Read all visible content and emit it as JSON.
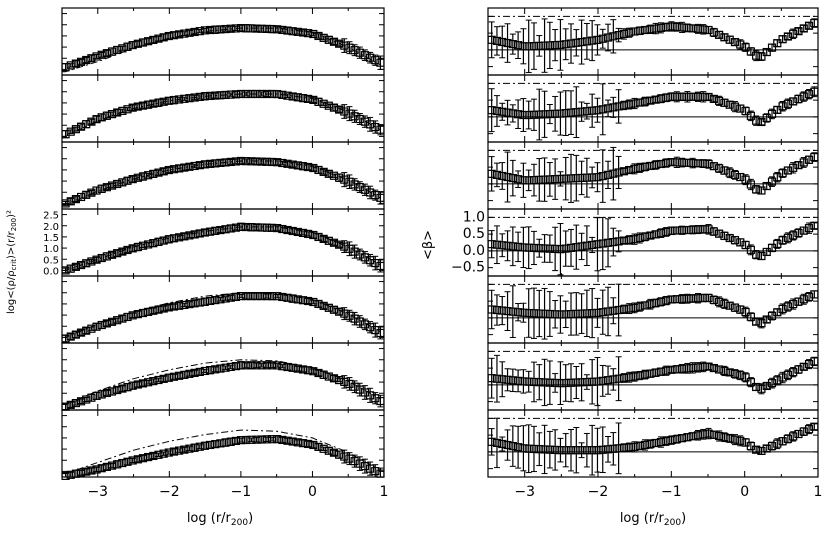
{
  "chart_data": [
    {
      "type": "scatter",
      "panel": "left",
      "xlabel": "log (r/r",
      "xlabel_sub": "200",
      "xlabel_close": ")",
      "ylabel": "log<(ρ/ρ",
      "ylabel_sub": "crit",
      "ylabel_mid": ")>(r/r",
      "ylabel_sub2": "200",
      "ylabel_end": ")²",
      "xlim": [
        -3.5,
        1
      ],
      "ylim": [
        -0.25,
        2.75
      ],
      "xticks": [
        -3,
        -2,
        -1,
        0,
        1
      ],
      "yticks": [
        0.0,
        0.5,
        1.0,
        1.5,
        2.0,
        2.5
      ],
      "ytick_labels": [
        "0.0",
        "0.5",
        "1.0",
        "1.5",
        "2.0",
        "2.5"
      ],
      "ytick_panel": 3,
      "n_panels": 7,
      "markers": "open squares with error bars",
      "series": [
        {
          "points": [
            [
              -3.45,
              0.1
            ],
            [
              -3.0,
              0.6
            ],
            [
              -2.5,
              1.1
            ],
            [
              -2.0,
              1.5
            ],
            [
              -1.5,
              1.75
            ],
            [
              -1.0,
              1.85
            ],
            [
              -0.5,
              1.8
            ],
            [
              0.0,
              1.6
            ],
            [
              0.5,
              1.0
            ],
            [
              0.95,
              0.3
            ]
          ],
          "err": 0.12,
          "ref": [
            [
              -3.45,
              -0.1
            ],
            [
              -3.0,
              0.35
            ],
            [
              -2.5,
              0.95
            ],
            [
              -2.0,
              1.4
            ],
            [
              -1.5,
              1.7
            ],
            [
              -1.0,
              1.85
            ],
            [
              -0.5,
              1.85
            ],
            [
              0.0,
              1.65
            ],
            [
              0.5,
              1.0
            ],
            [
              0.95,
              0.2
            ]
          ]
        },
        {
          "points": [
            [
              -3.45,
              0.1
            ],
            [
              -3.0,
              0.8
            ],
            [
              -2.5,
              1.3
            ],
            [
              -2.0,
              1.6
            ],
            [
              -1.5,
              1.8
            ],
            [
              -1.0,
              1.9
            ],
            [
              -0.5,
              1.9
            ],
            [
              0.0,
              1.65
            ],
            [
              0.5,
              1.05
            ],
            [
              0.95,
              0.3
            ]
          ],
          "err": 0.12,
          "ref": [
            [
              -3.45,
              0.0
            ],
            [
              -3.0,
              0.7
            ],
            [
              -2.5,
              1.25
            ],
            [
              -2.0,
              1.6
            ],
            [
              -1.5,
              1.8
            ],
            [
              -1.0,
              1.9
            ],
            [
              -0.5,
              1.9
            ],
            [
              0.0,
              1.7
            ],
            [
              0.5,
              1.1
            ],
            [
              0.95,
              0.3
            ]
          ]
        },
        {
          "points": [
            [
              -3.45,
              0.0
            ],
            [
              -3.0,
              0.6
            ],
            [
              -2.5,
              1.1
            ],
            [
              -2.0,
              1.5
            ],
            [
              -1.5,
              1.75
            ],
            [
              -1.0,
              1.9
            ],
            [
              -0.5,
              1.85
            ],
            [
              0.0,
              1.6
            ],
            [
              0.5,
              1.0
            ],
            [
              0.95,
              0.25
            ]
          ],
          "err": 0.12,
          "ref": [
            [
              -3.45,
              -0.05
            ],
            [
              -3.0,
              0.55
            ],
            [
              -2.5,
              1.1
            ],
            [
              -2.0,
              1.5
            ],
            [
              -1.5,
              1.75
            ],
            [
              -1.0,
              1.9
            ],
            [
              -0.5,
              1.9
            ],
            [
              0.0,
              1.65
            ],
            [
              0.5,
              1.05
            ],
            [
              0.95,
              0.25
            ]
          ]
        },
        {
          "points": [
            [
              -3.45,
              0.0
            ],
            [
              -3.0,
              0.5
            ],
            [
              -2.5,
              1.0
            ],
            [
              -2.0,
              1.4
            ],
            [
              -1.5,
              1.7
            ],
            [
              -1.0,
              1.95
            ],
            [
              -0.5,
              1.9
            ],
            [
              0.0,
              1.6
            ],
            [
              0.5,
              1.0
            ],
            [
              0.95,
              0.2
            ]
          ],
          "err": 0.12,
          "ref": [
            [
              -3.45,
              0.0
            ],
            [
              -3.0,
              0.5
            ],
            [
              -2.5,
              1.05
            ],
            [
              -2.0,
              1.45
            ],
            [
              -1.5,
              1.75
            ],
            [
              -1.0,
              1.95
            ],
            [
              -0.5,
              1.95
            ],
            [
              0.0,
              1.7
            ],
            [
              0.5,
              1.05
            ],
            [
              0.95,
              0.25
            ]
          ]
        },
        {
          "points": [
            [
              -3.45,
              -0.05
            ],
            [
              -3.0,
              0.5
            ],
            [
              -2.5,
              1.0
            ],
            [
              -2.0,
              1.35
            ],
            [
              -1.5,
              1.6
            ],
            [
              -1.0,
              1.85
            ],
            [
              -0.5,
              1.85
            ],
            [
              0.0,
              1.6
            ],
            [
              0.5,
              1.0
            ],
            [
              0.95,
              0.2
            ]
          ],
          "err": 0.12,
          "ref": [
            [
              -3.45,
              0.0
            ],
            [
              -3.0,
              0.6
            ],
            [
              -2.5,
              1.15
            ],
            [
              -2.0,
              1.55
            ],
            [
              -1.5,
              1.85
            ],
            [
              -1.0,
              2.0
            ],
            [
              -0.5,
              1.95
            ],
            [
              0.0,
              1.7
            ],
            [
              0.5,
              1.05
            ],
            [
              0.95,
              0.25
            ]
          ]
        },
        {
          "points": [
            [
              -3.45,
              -0.1
            ],
            [
              -3.0,
              0.4
            ],
            [
              -2.5,
              0.85
            ],
            [
              -2.0,
              1.2
            ],
            [
              -1.5,
              1.5
            ],
            [
              -1.0,
              1.75
            ],
            [
              -0.5,
              1.75
            ],
            [
              0.0,
              1.5
            ],
            [
              0.5,
              0.95
            ],
            [
              0.95,
              0.15
            ]
          ],
          "err": 0.12,
          "ref": [
            [
              -3.45,
              0.0
            ],
            [
              -3.0,
              0.6
            ],
            [
              -2.5,
              1.15
            ],
            [
              -2.0,
              1.55
            ],
            [
              -1.5,
              1.85
            ],
            [
              -1.0,
              2.0
            ],
            [
              -0.5,
              1.95
            ],
            [
              0.0,
              1.65
            ],
            [
              0.5,
              1.05
            ],
            [
              0.95,
              0.25
            ]
          ]
        },
        {
          "points": [
            [
              -3.45,
              -0.2
            ],
            [
              -3.0,
              0.1
            ],
            [
              -2.5,
              0.5
            ],
            [
              -2.0,
              0.85
            ],
            [
              -1.5,
              1.15
            ],
            [
              -1.0,
              1.4
            ],
            [
              -0.5,
              1.45
            ],
            [
              0.0,
              1.2
            ],
            [
              0.5,
              0.6
            ],
            [
              0.95,
              -0.1
            ]
          ],
          "err": 0.12,
          "ref": [
            [
              -3.45,
              -0.1
            ],
            [
              -3.0,
              0.4
            ],
            [
              -2.5,
              0.95
            ],
            [
              -2.0,
              1.35
            ],
            [
              -1.5,
              1.65
            ],
            [
              -1.0,
              1.85
            ],
            [
              -0.5,
              1.8
            ],
            [
              0.0,
              1.5
            ],
            [
              0.5,
              0.85
            ],
            [
              0.95,
              0.05
            ]
          ]
        }
      ]
    },
    {
      "type": "scatter",
      "panel": "right",
      "xlabel": "log (r/r",
      "xlabel_sub": "200",
      "xlabel_close": ")",
      "ylabel": "<β>",
      "xlim": [
        -3.5,
        1
      ],
      "ylim": [
        -0.75,
        1.25
      ],
      "xticks": [
        -3,
        -2,
        -1,
        0,
        1
      ],
      "yticks": [
        -0.5,
        0.0,
        0.5,
        1.0
      ],
      "ytick_labels": [
        "−0.5",
        "0.0",
        "0.5",
        "1.0"
      ],
      "ytick_panel": 3,
      "n_panels": 7,
      "reference_lines": {
        "solid": 0.0,
        "dashdot": 1.0
      },
      "markers": "open squares with error bars",
      "series": [
        {
          "points": [
            [
              -3.45,
              0.3
            ],
            [
              -3.0,
              0.1
            ],
            [
              -2.5,
              0.15
            ],
            [
              -2.0,
              0.3
            ],
            [
              -1.5,
              0.55
            ],
            [
              -1.0,
              0.7
            ],
            [
              -0.5,
              0.6
            ],
            [
              0.0,
              0.1
            ],
            [
              0.2,
              -0.25
            ],
            [
              0.5,
              0.3
            ],
            [
              0.95,
              0.8
            ]
          ],
          "err_core": 0.5,
          "err_outer": 0.12
        },
        {
          "points": [
            [
              -3.45,
              0.2
            ],
            [
              -3.0,
              0.05
            ],
            [
              -2.5,
              0.1
            ],
            [
              -2.0,
              0.2
            ],
            [
              -1.5,
              0.4
            ],
            [
              -1.0,
              0.6
            ],
            [
              -0.5,
              0.6
            ],
            [
              0.0,
              0.2
            ],
            [
              0.2,
              -0.2
            ],
            [
              0.5,
              0.3
            ],
            [
              0.95,
              0.75
            ]
          ],
          "err_core": 0.5,
          "err_outer": 0.12
        },
        {
          "points": [
            [
              -3.45,
              0.3
            ],
            [
              -3.0,
              0.1
            ],
            [
              -2.5,
              0.15
            ],
            [
              -2.0,
              0.2
            ],
            [
              -1.5,
              0.45
            ],
            [
              -1.0,
              0.65
            ],
            [
              -0.5,
              0.6
            ],
            [
              0.0,
              0.15
            ],
            [
              0.2,
              -0.25
            ],
            [
              0.5,
              0.3
            ],
            [
              0.95,
              0.8
            ]
          ],
          "err_core": 0.5,
          "err_outer": 0.12
        },
        {
          "points": [
            [
              -3.45,
              0.2
            ],
            [
              -3.0,
              0.1
            ],
            [
              -2.5,
              0.05
            ],
            [
              -2.0,
              0.2
            ],
            [
              -1.5,
              0.35
            ],
            [
              -1.0,
              0.6
            ],
            [
              -0.5,
              0.65
            ],
            [
              0.0,
              0.2
            ],
            [
              0.2,
              -0.2
            ],
            [
              0.5,
              0.3
            ],
            [
              0.95,
              0.75
            ]
          ],
          "err_core": 0.5,
          "err_outer": 0.12
        },
        {
          "points": [
            [
              -3.45,
              0.25
            ],
            [
              -3.0,
              0.15
            ],
            [
              -2.5,
              0.1
            ],
            [
              -2.0,
              0.15
            ],
            [
              -1.5,
              0.3
            ],
            [
              -1.0,
              0.55
            ],
            [
              -0.5,
              0.6
            ],
            [
              0.0,
              0.2
            ],
            [
              0.2,
              -0.2
            ],
            [
              0.5,
              0.25
            ],
            [
              0.95,
              0.7
            ]
          ],
          "err_core": 0.5,
          "err_outer": 0.12
        },
        {
          "points": [
            [
              -3.45,
              0.2
            ],
            [
              -3.0,
              0.1
            ],
            [
              -2.5,
              0.05
            ],
            [
              -2.0,
              0.1
            ],
            [
              -1.5,
              0.25
            ],
            [
              -1.0,
              0.45
            ],
            [
              -0.5,
              0.55
            ],
            [
              0.0,
              0.25
            ],
            [
              0.2,
              -0.15
            ],
            [
              0.5,
              0.2
            ],
            [
              0.95,
              0.7
            ]
          ],
          "err_core": 0.5,
          "err_outer": 0.12
        },
        {
          "points": [
            [
              -3.45,
              0.3
            ],
            [
              -3.0,
              0.1
            ],
            [
              -2.5,
              0.05
            ],
            [
              -2.0,
              0.05
            ],
            [
              -1.5,
              0.15
            ],
            [
              -1.0,
              0.35
            ],
            [
              -0.5,
              0.55
            ],
            [
              0.0,
              0.3
            ],
            [
              0.2,
              0.0
            ],
            [
              0.5,
              0.3
            ],
            [
              0.95,
              0.75
            ]
          ],
          "err_core": 0.5,
          "err_outer": 0.12
        }
      ]
    }
  ]
}
